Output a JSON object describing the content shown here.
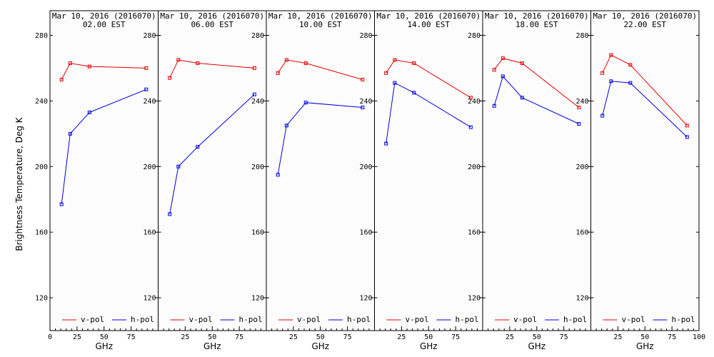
{
  "ylabel": "Brightness Temperature, Deg K",
  "colors": {
    "vpol": "#e60000",
    "hpol": "#0000e6",
    "frame": "#000000",
    "panel_bg": "#fcfcfc"
  },
  "chart_data": [
    {
      "type": "line",
      "title": "Mar 10, 2016 (2016070)",
      "subtitle": "02.00 EST",
      "xlabel": "GHz",
      "xlim": [
        0,
        100
      ],
      "ylim": [
        100,
        295
      ],
      "xticks": [
        "0",
        "25",
        "50",
        "75"
      ],
      "yticks": [
        120,
        160,
        200,
        240,
        280
      ],
      "legend_placement": "bottom",
      "series": [
        {
          "name": "v-pol",
          "x": [
            10.7,
            18.7,
            36.5,
            89.0
          ],
          "y": [
            253,
            263,
            261,
            260
          ]
        },
        {
          "name": "h-pol",
          "x": [
            10.7,
            18.7,
            36.5,
            89.0
          ],
          "y": [
            177,
            220,
            233,
            247
          ]
        }
      ]
    },
    {
      "type": "line",
      "title": "Mar 10, 2016 (2016070)",
      "subtitle": "06.00 EST",
      "xlabel": "GHz",
      "xlim": [
        0,
        100
      ],
      "ylim": [
        100,
        295
      ],
      "xticks": [
        "25",
        "50",
        "75"
      ],
      "yticks": [
        120,
        160,
        200,
        240,
        280
      ],
      "legend_placement": "bottom",
      "series": [
        {
          "name": "v-pol",
          "x": [
            10.7,
            18.7,
            36.5,
            89.0
          ],
          "y": [
            254,
            265,
            263,
            260
          ]
        },
        {
          "name": "h-pol",
          "x": [
            10.7,
            18.7,
            36.5,
            89.0
          ],
          "y": [
            171,
            200,
            212,
            244
          ]
        }
      ]
    },
    {
      "type": "line",
      "title": "Mar 10, 2016 (2016070)",
      "subtitle": "10.00 EST",
      "xlabel": "GHz",
      "xlim": [
        0,
        100
      ],
      "ylim": [
        100,
        295
      ],
      "xticks": [
        "25",
        "50",
        "75"
      ],
      "yticks": [
        120,
        160,
        200,
        240,
        280
      ],
      "legend_placement": "bottom",
      "series": [
        {
          "name": "v-pol",
          "x": [
            10.7,
            18.7,
            36.5,
            89.0
          ],
          "y": [
            257,
            265,
            263,
            253
          ]
        },
        {
          "name": "h-pol",
          "x": [
            10.7,
            18.7,
            36.5,
            89.0
          ],
          "y": [
            195,
            225,
            239,
            236
          ]
        }
      ]
    },
    {
      "type": "line",
      "title": "Mar 10, 2016 (2016070)",
      "subtitle": "14.00 EST",
      "xlabel": "GHz",
      "xlim": [
        0,
        100
      ],
      "ylim": [
        100,
        295
      ],
      "xticks": [
        "25",
        "50",
        "75"
      ],
      "yticks": [
        120,
        160,
        200,
        240,
        280
      ],
      "legend_placement": "bottom",
      "series": [
        {
          "name": "v-pol",
          "x": [
            10.7,
            18.7,
            36.5,
            89.0
          ],
          "y": [
            257,
            265,
            263,
            242
          ]
        },
        {
          "name": "h-pol",
          "x": [
            10.7,
            18.7,
            36.5,
            89.0
          ],
          "y": [
            214,
            251,
            245,
            224
          ]
        }
      ]
    },
    {
      "type": "line",
      "title": "Mar 10, 2016 (2016070)",
      "subtitle": "18.00 EST",
      "xlabel": "GHz",
      "xlim": [
        0,
        100
      ],
      "ylim": [
        100,
        295
      ],
      "xticks": [
        "25",
        "50",
        "75"
      ],
      "yticks": [
        120,
        160,
        200,
        240,
        280
      ],
      "legend_placement": "bottom",
      "series": [
        {
          "name": "v-pol",
          "x": [
            10.7,
            18.7,
            36.5,
            89.0
          ],
          "y": [
            259,
            266,
            263,
            236
          ]
        },
        {
          "name": "h-pol",
          "x": [
            10.7,
            18.7,
            36.5,
            89.0
          ],
          "y": [
            237,
            255,
            242,
            226
          ]
        }
      ]
    },
    {
      "type": "line",
      "title": "Mar 10, 2016 (2016070)",
      "subtitle": "22.00 EST",
      "xlabel": "GHz",
      "xlim": [
        0,
        100
      ],
      "ylim": [
        100,
        295
      ],
      "xticks": [
        "25",
        "50",
        "75",
        "100"
      ],
      "yticks": [
        120,
        160,
        200,
        240,
        280
      ],
      "legend_placement": "bottom",
      "series": [
        {
          "name": "v-pol",
          "x": [
            10.7,
            18.7,
            36.5,
            89.0
          ],
          "y": [
            257,
            268,
            262,
            225
          ]
        },
        {
          "name": "h-pol",
          "x": [
            10.7,
            18.7,
            36.5,
            89.0
          ],
          "y": [
            231,
            252,
            251,
            218
          ]
        }
      ]
    }
  ]
}
